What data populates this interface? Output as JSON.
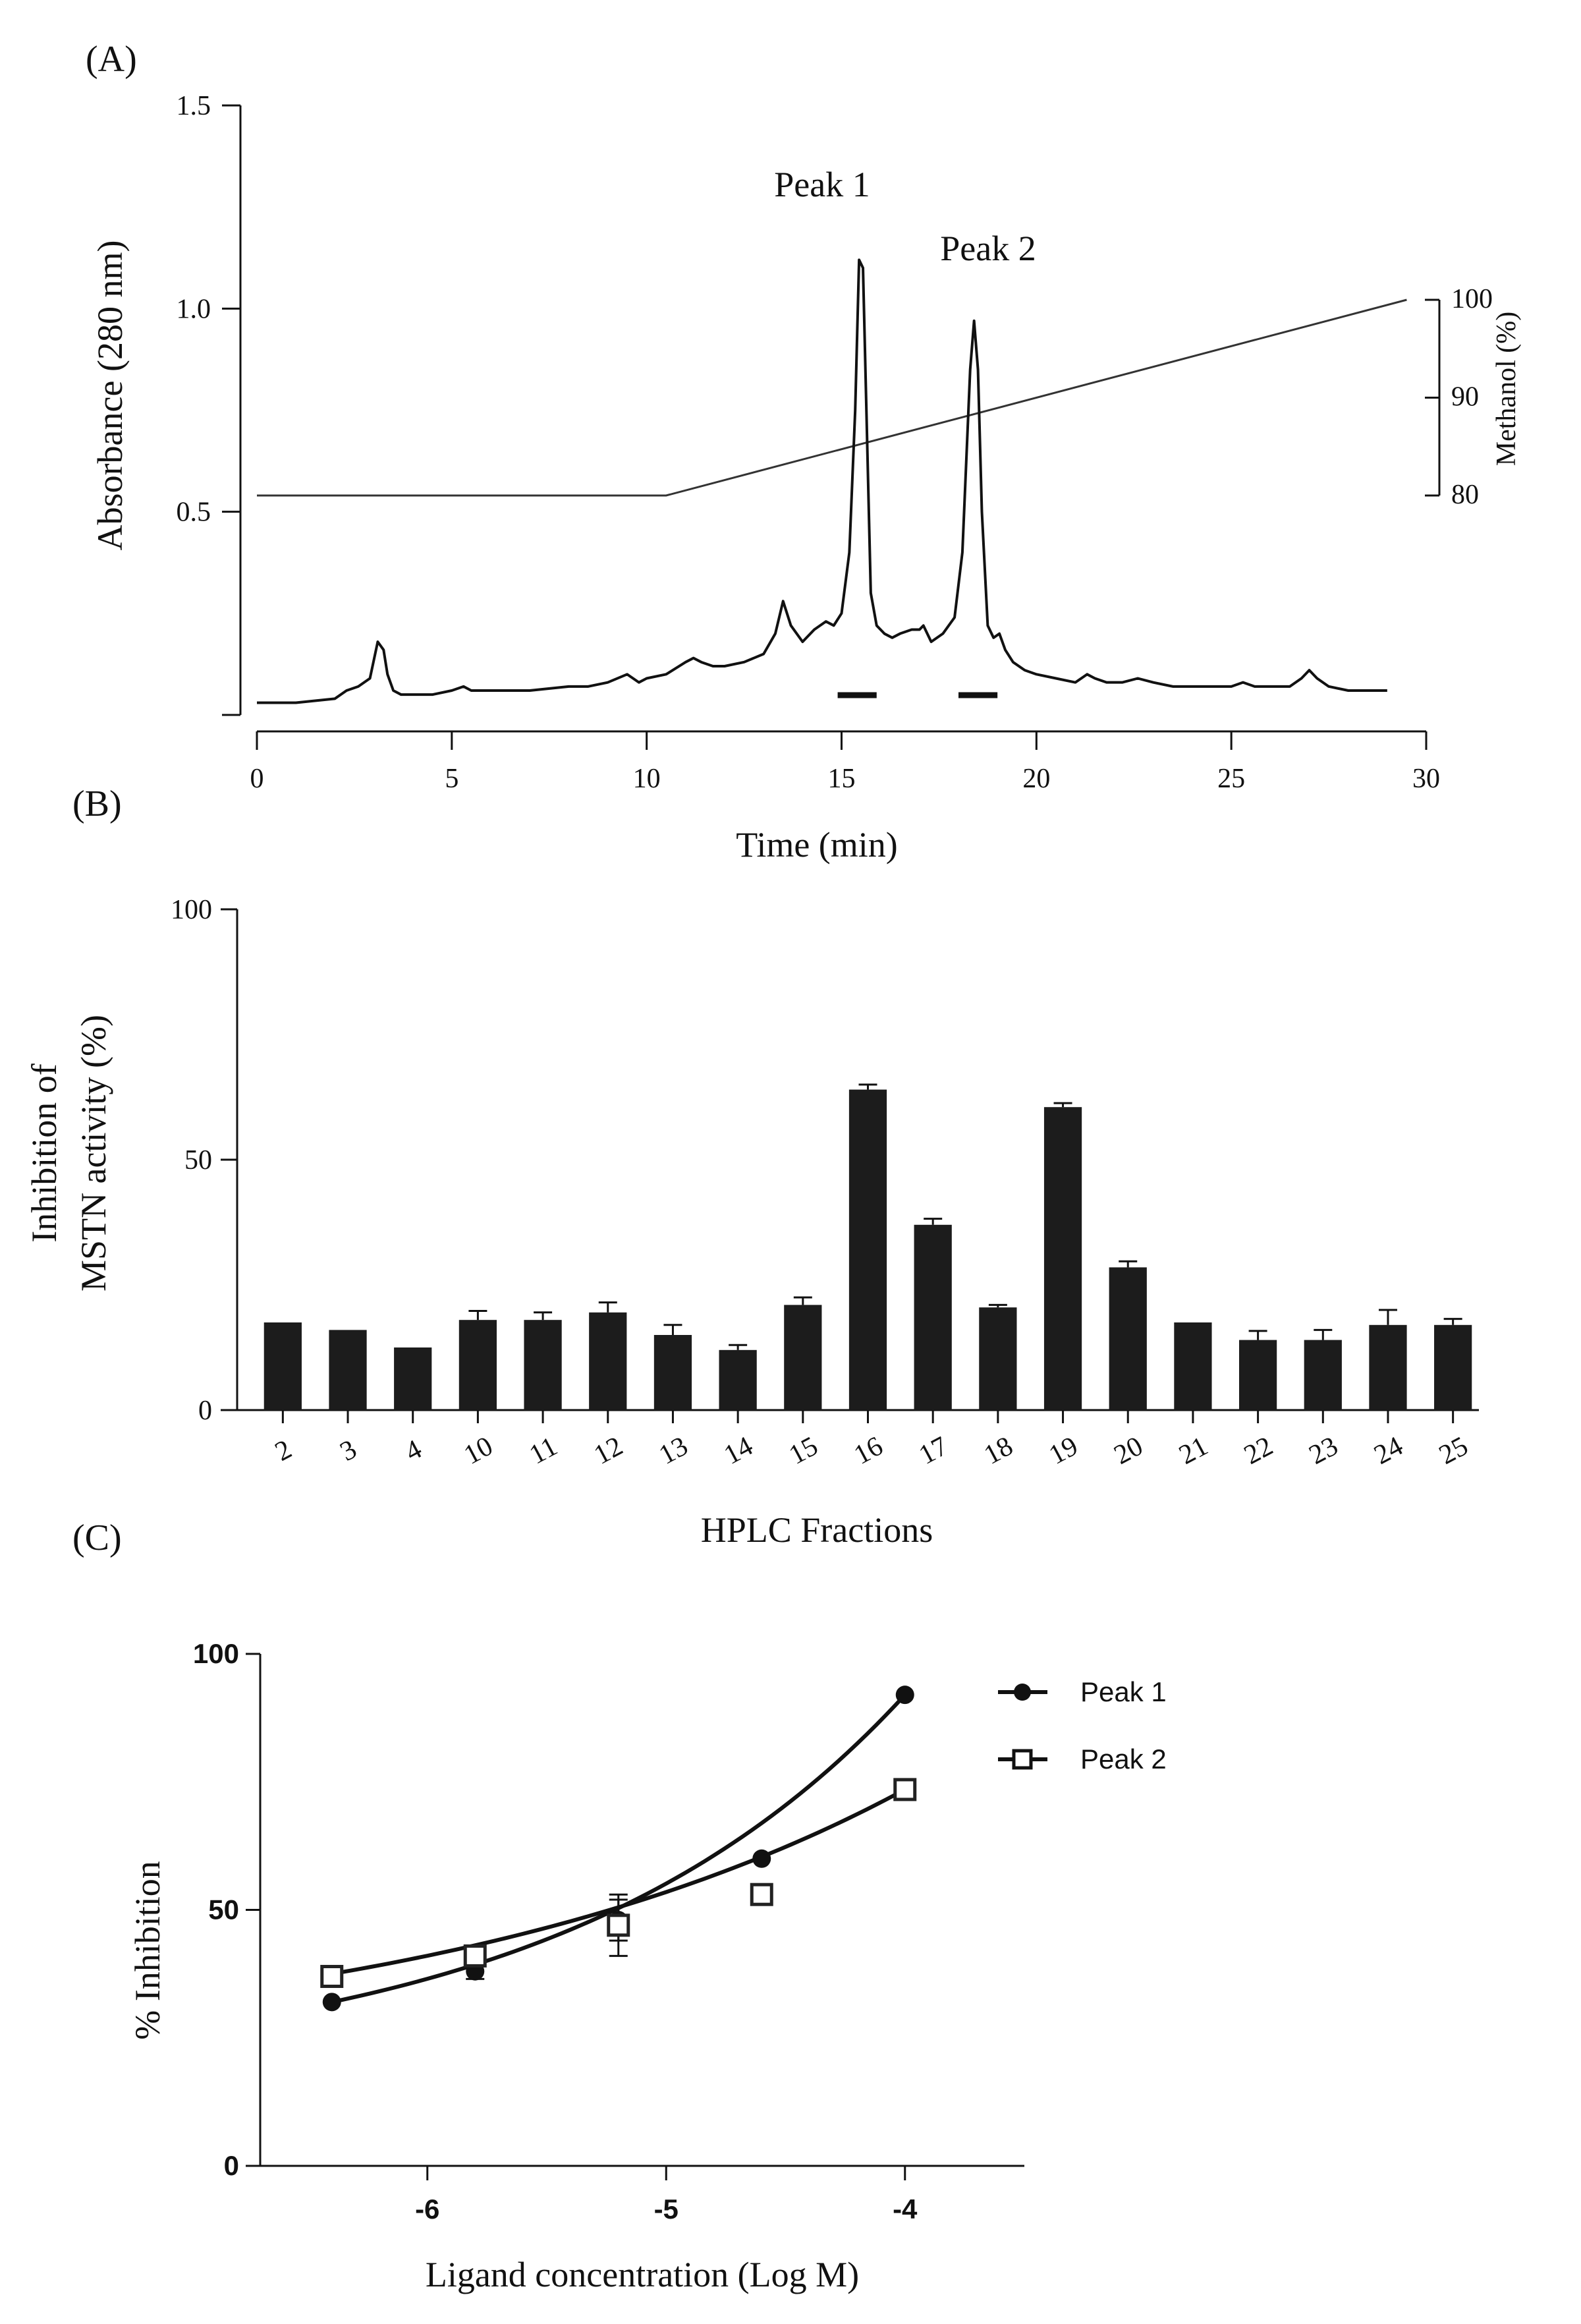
{
  "chart_data": [
    {
      "panel": "(A)",
      "type": "line",
      "ylabel": "Absorbance (280 nm)",
      "xlabel": "Time (min)",
      "xlim": [
        0,
        30
      ],
      "ylim": [
        0,
        1.5
      ],
      "x_ticks": [
        "0",
        "5",
        "10",
        "15",
        "20",
        "25",
        "30"
      ],
      "y_ticks": [
        "0.5",
        "1.0",
        "1.5"
      ],
      "y2label": "Methanol (%)",
      "y2_ticks": [
        "80",
        "90",
        "100"
      ],
      "y2lim": [
        80,
        100
      ],
      "annotations": [
        "Peak 1",
        "Peak 2"
      ],
      "gradient": {
        "name": "Methanol (%)",
        "x": [
          0,
          10.5,
          29.5
        ],
        "y": [
          80,
          80,
          100
        ]
      },
      "collected_fractions": [
        [
          14.9,
          15.9
        ],
        [
          18.0,
          19.0
        ]
      ],
      "series": [
        {
          "name": "Absorbance (280 nm)",
          "x": [
            0,
            1,
            2,
            2.3,
            2.6,
            2.9,
            3.1,
            3.25,
            3.35,
            3.5,
            3.7,
            4,
            4.5,
            5,
            5.3,
            5.5,
            6,
            7,
            8,
            8.5,
            9,
            9.5,
            9.8,
            10,
            10.5,
            11,
            11.2,
            11.4,
            11.7,
            12,
            12.5,
            13,
            13.3,
            13.5,
            13.7,
            14,
            14.3,
            14.6,
            14.8,
            15,
            15.2,
            15.35,
            15.45,
            15.55,
            15.65,
            15.75,
            15.9,
            16.1,
            16.3,
            16.5,
            16.8,
            17,
            17.1,
            17.3,
            17.6,
            17.9,
            18.1,
            18.3,
            18.4,
            18.5,
            18.6,
            18.75,
            18.9,
            19.05,
            19.2,
            19.4,
            19.7,
            20,
            20.5,
            21,
            21.3,
            21.5,
            21.8,
            22.2,
            22.6,
            23,
            23.5,
            24,
            24.5,
            25,
            25.3,
            25.6,
            26,
            26.5,
            26.8,
            27,
            27.2,
            27.5,
            28,
            28.5,
            29
          ],
          "y": [
            0.03,
            0.03,
            0.04,
            0.06,
            0.07,
            0.09,
            0.18,
            0.16,
            0.1,
            0.06,
            0.05,
            0.05,
            0.05,
            0.06,
            0.07,
            0.06,
            0.06,
            0.06,
            0.07,
            0.07,
            0.08,
            0.1,
            0.08,
            0.09,
            0.1,
            0.13,
            0.14,
            0.13,
            0.12,
            0.12,
            0.13,
            0.15,
            0.2,
            0.28,
            0.22,
            0.18,
            0.21,
            0.23,
            0.22,
            0.25,
            0.4,
            0.75,
            1.12,
            1.1,
            0.7,
            0.3,
            0.22,
            0.2,
            0.19,
            0.2,
            0.21,
            0.21,
            0.22,
            0.18,
            0.2,
            0.24,
            0.4,
            0.85,
            0.97,
            0.85,
            0.5,
            0.22,
            0.19,
            0.2,
            0.16,
            0.13,
            0.11,
            0.1,
            0.09,
            0.08,
            0.1,
            0.09,
            0.08,
            0.08,
            0.09,
            0.08,
            0.07,
            0.07,
            0.07,
            0.07,
            0.08,
            0.07,
            0.07,
            0.07,
            0.09,
            0.11,
            0.09,
            0.07,
            0.06,
            0.06,
            0.06
          ]
        }
      ]
    },
    {
      "panel": "(B)",
      "type": "bar",
      "ylabel_lines": [
        "Inhibition of",
        "MSTN activity (%)"
      ],
      "xlabel": "HPLC Fractions",
      "ylim": [
        0,
        100
      ],
      "y_ticks": [
        "0",
        "50",
        "100"
      ],
      "categories": [
        "2",
        "3",
        "4",
        "10",
        "11",
        "12",
        "13",
        "14",
        "15",
        "16",
        "17",
        "18",
        "19",
        "20",
        "21",
        "22",
        "23",
        "24",
        "25"
      ],
      "values": [
        17.5,
        16,
        12.5,
        18,
        18,
        19.5,
        15,
        12,
        21,
        64,
        37,
        20.5,
        60.5,
        28.5,
        17.5,
        14,
        14,
        17,
        17
      ],
      "errors": [
        0,
        0,
        0,
        1.8,
        1.5,
        2,
        2,
        1,
        1.5,
        1,
        1.2,
        0.5,
        0.8,
        1.2,
        0,
        1.8,
        2,
        3,
        1.2
      ]
    },
    {
      "panel": "(C)",
      "type": "scatter",
      "ylabel": "% Inhibition",
      "xlabel": "Ligand concentration (Log M)",
      "xlim": [
        -6.7,
        -3.5
      ],
      "ylim": [
        0,
        100
      ],
      "x_ticks": [
        "-6",
        "-5",
        "-4"
      ],
      "y_ticks": [
        "0",
        "50",
        "100"
      ],
      "series": [
        {
          "name": "Peak 1",
          "marker": "filled-circle",
          "x": [
            -6.4,
            -5.8,
            -5.2,
            -4.6,
            -4.0
          ],
          "y": [
            32,
            38,
            48,
            60,
            92
          ],
          "err": [
            0,
            1.5,
            4,
            0,
            0
          ],
          "fit": [
            -6.4,
            32,
            -4.0,
            92
          ]
        },
        {
          "name": "Peak 2",
          "marker": "open-square",
          "x": [
            -6.4,
            -5.8,
            -5.2,
            -4.6,
            -4.0
          ],
          "y": [
            37,
            41,
            47,
            53,
            73.5
          ],
          "err": [
            0,
            0,
            6,
            0,
            0
          ],
          "fit": [
            -6.4,
            37.5,
            -4.0,
            73.5
          ]
        }
      ]
    }
  ]
}
